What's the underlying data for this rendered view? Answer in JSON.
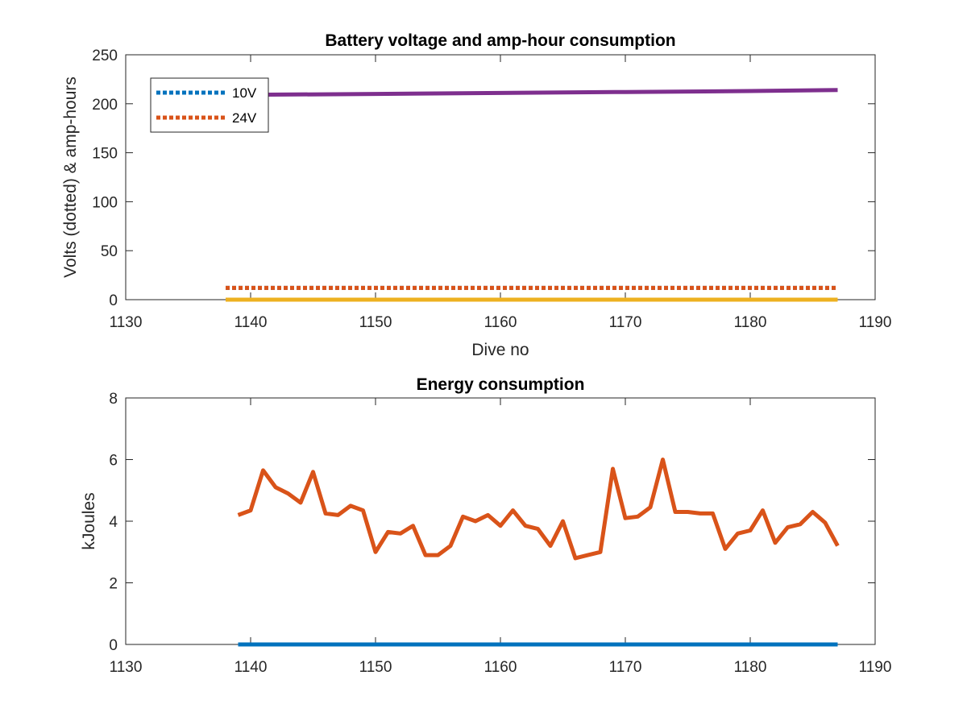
{
  "chart_data": [
    {
      "type": "line",
      "title": "Battery voltage and amp-hour consumption",
      "xlabel": "Dive no",
      "ylabel": "Volts (dotted) & amp-hours",
      "xlim": [
        1130,
        1190
      ],
      "ylim": [
        0,
        250
      ],
      "xticks": [
        1130,
        1140,
        1150,
        1160,
        1170,
        1180,
        1190
      ],
      "yticks": [
        0,
        50,
        100,
        150,
        200,
        250
      ],
      "legend": {
        "placement": "top-left",
        "entries": [
          "10V",
          "24V"
        ]
      },
      "series": [
        {
          "name": "10V",
          "color": "#0072BD",
          "style": "dotted",
          "x": [
            1138,
            1187
          ],
          "y": [
            12,
            12
          ]
        },
        {
          "name": "24V",
          "color": "#D95319",
          "style": "dotted",
          "x": [
            1138,
            1187
          ],
          "y": [
            12,
            12
          ]
        },
        {
          "color": "#EDB120",
          "style": "solid",
          "x": [
            1138,
            1187
          ],
          "y": [
            0,
            0
          ]
        },
        {
          "color": "#7E2F8E",
          "style": "solid",
          "x": [
            1138,
            1150,
            1160,
            1170,
            1180,
            1187
          ],
          "y": [
            209,
            210,
            211,
            212,
            213,
            214
          ]
        }
      ]
    },
    {
      "type": "line",
      "title": "Energy consumption",
      "xlabel": "",
      "ylabel": "kJoules",
      "xlim": [
        1130,
        1190
      ],
      "ylim": [
        0,
        8
      ],
      "xticks": [
        1130,
        1140,
        1150,
        1160,
        1170,
        1180,
        1190
      ],
      "yticks": [
        0,
        2,
        4,
        6,
        8
      ],
      "series": [
        {
          "color": "#0072BD",
          "style": "solid",
          "x": [
            1139,
            1187
          ],
          "y": [
            0,
            0
          ]
        },
        {
          "color": "#D95319",
          "style": "solid",
          "x": [
            1139,
            1140,
            1141,
            1142,
            1143,
            1144,
            1145,
            1146,
            1147,
            1148,
            1149,
            1150,
            1151,
            1152,
            1153,
            1154,
            1155,
            1156,
            1157,
            1158,
            1159,
            1160,
            1161,
            1162,
            1163,
            1164,
            1165,
            1166,
            1167,
            1168,
            1169,
            1170,
            1171,
            1172,
            1173,
            1174,
            1175,
            1176,
            1177,
            1178,
            1179,
            1180,
            1181,
            1182,
            1183,
            1184,
            1185,
            1186,
            1187
          ],
          "y": [
            4.2,
            4.35,
            5.65,
            5.1,
            4.9,
            4.6,
            5.6,
            4.25,
            4.2,
            4.5,
            4.35,
            3.0,
            3.65,
            3.6,
            3.85,
            2.9,
            2.9,
            3.2,
            4.15,
            4.0,
            4.2,
            3.85,
            4.35,
            3.85,
            3.75,
            3.2,
            4.0,
            2.8,
            2.9,
            3.0,
            5.7,
            4.1,
            4.15,
            4.45,
            6.0,
            4.3,
            4.3,
            4.25,
            4.25,
            3.1,
            3.6,
            3.7,
            4.35,
            3.3,
            3.8,
            3.9,
            4.3,
            3.95,
            3.2
          ]
        }
      ]
    }
  ]
}
